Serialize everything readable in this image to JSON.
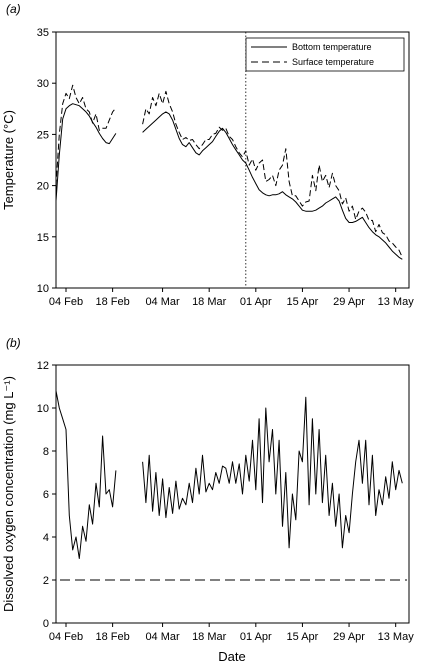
{
  "chart_data": [
    {
      "type": "line",
      "panel_label": "(a)",
      "xlabel": "",
      "ylabel": "Temperature (°C)",
      "x_ticks": [
        "04 Feb",
        "18 Feb",
        "04 Mar",
        "18 Mar",
        "01 Apr",
        "15 Apr",
        "29 Apr",
        "13 May"
      ],
      "xlim": [
        "2024-02-01",
        "2024-05-17"
      ],
      "ylim": [
        10,
        35
      ],
      "y_ticks": [
        10,
        15,
        20,
        25,
        30,
        35
      ],
      "grid": false,
      "legend_position": "top-right",
      "vertical_marker_date": "2024-03-29",
      "series": [
        {
          "name": "Bottom temperature",
          "style": "solid",
          "segments": [
            {
              "x": [
                "2024-02-01",
                "2024-02-02",
                "2024-02-03",
                "2024-02-04",
                "2024-02-05",
                "2024-02-06",
                "2024-02-07",
                "2024-02-08",
                "2024-02-09",
                "2024-02-10",
                "2024-02-11",
                "2024-02-12",
                "2024-02-13",
                "2024-02-14",
                "2024-02-15",
                "2024-02-16",
                "2024-02-17",
                "2024-02-18",
                "2024-02-19"
              ],
              "y": [
                18.5,
                23,
                26.5,
                27.5,
                27.8,
                28,
                27.9,
                27.8,
                27.5,
                27.2,
                26.8,
                26.2,
                25.7,
                25.1,
                24.6,
                24.2,
                24.1,
                24.6,
                25.1
              ]
            },
            {
              "x": [
                "2024-02-27",
                "2024-02-28",
                "2024-02-29",
                "2024-03-01",
                "2024-03-02",
                "2024-03-03",
                "2024-03-04",
                "2024-03-05",
                "2024-03-06",
                "2024-03-07",
                "2024-03-08",
                "2024-03-09",
                "2024-03-10",
                "2024-03-11",
                "2024-03-12",
                "2024-03-13",
                "2024-03-14",
                "2024-03-15",
                "2024-03-16",
                "2024-03-17",
                "2024-03-18",
                "2024-03-19",
                "2024-03-20",
                "2024-03-21",
                "2024-03-22",
                "2024-03-23",
                "2024-03-24",
                "2024-03-25",
                "2024-03-26",
                "2024-03-27",
                "2024-03-28",
                "2024-03-29",
                "2024-03-30",
                "2024-03-31",
                "2024-04-01",
                "2024-04-02",
                "2024-04-03",
                "2024-04-04",
                "2024-04-05",
                "2024-04-06",
                "2024-04-07",
                "2024-04-08",
                "2024-04-09",
                "2024-04-10",
                "2024-04-11",
                "2024-04-12",
                "2024-04-13",
                "2024-04-14",
                "2024-04-15",
                "2024-04-16",
                "2024-04-17",
                "2024-04-18",
                "2024-04-19",
                "2024-04-20",
                "2024-04-21",
                "2024-04-22",
                "2024-04-23",
                "2024-04-24",
                "2024-04-25",
                "2024-04-26",
                "2024-04-27",
                "2024-04-28",
                "2024-04-29",
                "2024-04-30",
                "2024-05-01",
                "2024-05-02",
                "2024-05-03",
                "2024-05-04",
                "2024-05-05",
                "2024-05-06",
                "2024-05-07",
                "2024-05-08",
                "2024-05-09",
                "2024-05-10",
                "2024-05-11",
                "2024-05-12",
                "2024-05-13",
                "2024-05-14",
                "2024-05-15"
              ],
              "y": [
                25.2,
                25.5,
                25.8,
                26.1,
                26.4,
                26.7,
                27,
                27.2,
                27,
                26.4,
                25.5,
                24.6,
                24,
                23.8,
                24.2,
                23.7,
                23.2,
                23,
                23.4,
                23.7,
                24,
                24.3,
                24.8,
                25.3,
                25.6,
                25.2,
                24.6,
                24,
                23.5,
                23,
                22.5,
                22.2,
                21.5,
                20.8,
                20.2,
                19.6,
                19.3,
                19.1,
                19,
                19.1,
                19.1,
                19.2,
                19.4,
                19.1,
                18.9,
                18.7,
                18.4,
                18,
                17.6,
                17.5,
                17.5,
                17.5,
                17.6,
                17.8,
                18,
                18.3,
                18.5,
                18.7,
                18.9,
                18.5,
                17.6,
                16.8,
                16.4,
                16.4,
                16.5,
                16.7,
                16.9,
                16.4,
                15.9,
                15.5,
                15.2,
                15,
                14.7,
                14.4,
                14,
                13.6,
                13.3,
                13,
                12.8
              ]
            }
          ]
        },
        {
          "name": "Surface temperature",
          "style": "dashed",
          "segments": [
            {
              "x": [
                "2024-02-01",
                "2024-02-02",
                "2024-02-03",
                "2024-02-04",
                "2024-02-05",
                "2024-02-06",
                "2024-02-07",
                "2024-02-08",
                "2024-02-09",
                "2024-02-10",
                "2024-02-11",
                "2024-02-12",
                "2024-02-13",
                "2024-02-14",
                "2024-02-15",
                "2024-02-16",
                "2024-02-17",
                "2024-02-18",
                "2024-02-19"
              ],
              "y": [
                20,
                25,
                28,
                29,
                28.5,
                29.8,
                28.6,
                28,
                28.6,
                27.5,
                27.2,
                26.1,
                27,
                25.4,
                25.6,
                25.6,
                26.4,
                27.2,
                27.6
              ]
            },
            {
              "x": [
                "2024-02-27",
                "2024-02-28",
                "2024-02-29",
                "2024-03-01",
                "2024-03-02",
                "2024-03-03",
                "2024-03-04",
                "2024-03-05",
                "2024-03-06",
                "2024-03-07",
                "2024-03-08",
                "2024-03-09",
                "2024-03-10",
                "2024-03-11",
                "2024-03-12",
                "2024-03-13",
                "2024-03-14",
                "2024-03-15",
                "2024-03-16",
                "2024-03-17",
                "2024-03-18",
                "2024-03-19",
                "2024-03-20",
                "2024-03-21",
                "2024-03-22",
                "2024-03-23",
                "2024-03-24",
                "2024-03-25",
                "2024-03-26",
                "2024-03-27",
                "2024-03-28",
                "2024-03-29",
                "2024-03-30",
                "2024-03-31",
                "2024-04-01",
                "2024-04-02",
                "2024-04-03",
                "2024-04-04",
                "2024-04-05",
                "2024-04-06",
                "2024-04-07",
                "2024-04-08",
                "2024-04-09",
                "2024-04-10",
                "2024-04-11",
                "2024-04-12",
                "2024-04-13",
                "2024-04-14",
                "2024-04-15",
                "2024-04-16",
                "2024-04-17",
                "2024-04-18",
                "2024-04-19",
                "2024-04-20",
                "2024-04-21",
                "2024-04-22",
                "2024-04-23",
                "2024-04-24",
                "2024-04-25",
                "2024-04-26",
                "2024-04-27",
                "2024-04-28",
                "2024-04-29",
                "2024-04-30",
                "2024-05-01",
                "2024-05-02",
                "2024-05-03",
                "2024-05-04",
                "2024-05-05",
                "2024-05-06",
                "2024-05-07",
                "2024-05-08",
                "2024-05-09",
                "2024-05-10",
                "2024-05-11",
                "2024-05-12",
                "2024-05-13",
                "2024-05-14",
                "2024-05-15"
              ],
              "y": [
                26,
                27.5,
                27,
                28.6,
                27.8,
                29,
                28,
                29.2,
                28,
                27.2,
                26,
                25.2,
                24.5,
                24.7,
                24.4,
                24.5,
                24,
                23.6,
                24,
                24.5,
                24.5,
                25,
                25.1,
                25.7,
                25.4,
                25.6,
                24.8,
                24.5,
                23.8,
                23.2,
                22.8,
                23.4,
                22,
                22.6,
                21.5,
                22.2,
                22.5,
                20.4,
                20.6,
                21,
                20,
                21.5,
                22,
                23.6,
                20.4,
                19,
                19,
                18.5,
                18,
                18.4,
                18.5,
                21,
                19.5,
                22,
                20.4,
                21,
                19.8,
                21.2,
                20,
                19.5,
                18.2,
                18.8,
                17.5,
                18,
                16.7,
                17.5,
                17.8,
                17.4,
                16.6,
                16.6,
                15.5,
                16.2,
                15.4,
                15.2,
                14.6,
                14.4,
                14,
                13.7,
                13
              ]
            }
          ]
        }
      ]
    },
    {
      "type": "line",
      "panel_label": "(b)",
      "xlabel": "Date",
      "ylabel": "Dissolved oxygen concentration (mg L⁻¹)",
      "x_ticks": [
        "04 Feb",
        "18 Feb",
        "04 Mar",
        "18 Mar",
        "01 Apr",
        "15 Apr",
        "29 Apr",
        "13 May"
      ],
      "xlim": [
        "2024-02-01",
        "2024-05-17"
      ],
      "ylim": [
        0,
        12
      ],
      "y_ticks": [
        0,
        2,
        4,
        6,
        8,
        10,
        12
      ],
      "grid": false,
      "reference_line": {
        "y": 2,
        "style": "dashed"
      },
      "series": [
        {
          "style": "solid",
          "segments": [
            {
              "x": [
                "2024-02-01",
                "2024-02-02",
                "2024-02-03",
                "2024-02-04",
                "2024-02-05",
                "2024-02-06",
                "2024-02-07",
                "2024-02-08",
                "2024-02-09",
                "2024-02-10",
                "2024-02-11",
                "2024-02-12",
                "2024-02-13",
                "2024-02-14",
                "2024-02-15",
                "2024-02-16",
                "2024-02-17",
                "2024-02-18",
                "2024-02-19"
              ],
              "y": [
                10.8,
                10,
                9.5,
                9,
                5,
                3.4,
                4,
                3,
                4.5,
                3.8,
                5.5,
                4.6,
                6.5,
                5.4,
                8.7,
                6,
                6.2,
                5.4,
                7.1
              ]
            },
            {
              "x": [
                "2024-02-27",
                "2024-02-28",
                "2024-02-29",
                "2024-03-01",
                "2024-03-02",
                "2024-03-03",
                "2024-03-04",
                "2024-03-05",
                "2024-03-06",
                "2024-03-07",
                "2024-03-08",
                "2024-03-09",
                "2024-03-10",
                "2024-03-11",
                "2024-03-12",
                "2024-03-13",
                "2024-03-14",
                "2024-03-15",
                "2024-03-16",
                "2024-03-17",
                "2024-03-18",
                "2024-03-19",
                "2024-03-20",
                "2024-03-21",
                "2024-03-22",
                "2024-03-23",
                "2024-03-24",
                "2024-03-25",
                "2024-03-26",
                "2024-03-27",
                "2024-03-28",
                "2024-03-29",
                "2024-03-30",
                "2024-03-31",
                "2024-04-01",
                "2024-04-02",
                "2024-04-03",
                "2024-04-04",
                "2024-04-05",
                "2024-04-06",
                "2024-04-07",
                "2024-04-08",
                "2024-04-09",
                "2024-04-10",
                "2024-04-11",
                "2024-04-12",
                "2024-04-13",
                "2024-04-14",
                "2024-04-15",
                "2024-04-16",
                "2024-04-17",
                "2024-04-18",
                "2024-04-19",
                "2024-04-20",
                "2024-04-21",
                "2024-04-22",
                "2024-04-23",
                "2024-04-24",
                "2024-04-25",
                "2024-04-26",
                "2024-04-27",
                "2024-04-28",
                "2024-04-29",
                "2024-04-30",
                "2024-05-01",
                "2024-05-02",
                "2024-05-03",
                "2024-05-04",
                "2024-05-05",
                "2024-05-06",
                "2024-05-07",
                "2024-05-08",
                "2024-05-09",
                "2024-05-10",
                "2024-05-11",
                "2024-05-12",
                "2024-05-13",
                "2024-05-14",
                "2024-05-15"
              ],
              "y": [
                7.5,
                5.6,
                7.8,
                5.2,
                7,
                5,
                6.7,
                4.9,
                6.3,
                5.1,
                6.6,
                5.3,
                5.8,
                5.5,
                6.5,
                5.6,
                7.2,
                6,
                7.8,
                6.1,
                6.5,
                6.2,
                7,
                6.5,
                7.3,
                7.2,
                6.5,
                7.5,
                6.5,
                7.4,
                6,
                7.8,
                6.6,
                8.5,
                6.2,
                9.5,
                5.6,
                10,
                7.5,
                9,
                6,
                8.5,
                4.5,
                7,
                3.5,
                6,
                4.8,
                8,
                7.5,
                10.5,
                5.5,
                9.5,
                6,
                9,
                5.6,
                7.8,
                5,
                6.5,
                4.5,
                6,
                3.5,
                5,
                4.2,
                6,
                7.5,
                8.5,
                6.5,
                8.5,
                5.5,
                7.8,
                5,
                6.2,
                5.5,
                6.8,
                5.8,
                7.5,
                6.2,
                7.1,
                6.5
              ]
            }
          ]
        }
      ]
    }
  ]
}
